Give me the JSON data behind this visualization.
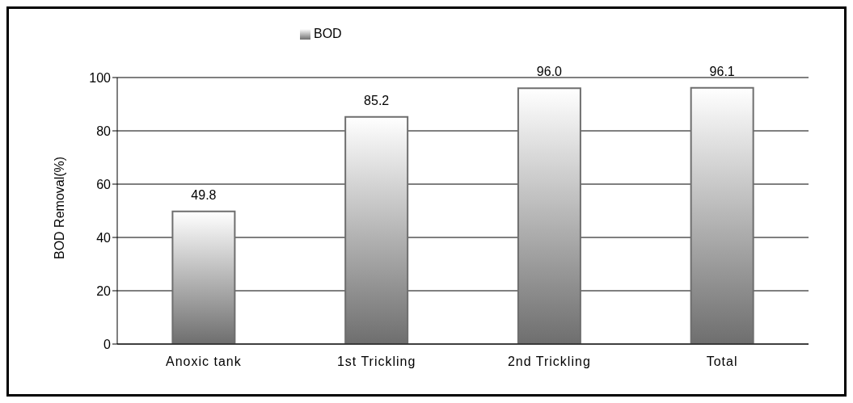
{
  "chart_data": {
    "type": "bar",
    "ylabel": "BOD Removal(%)",
    "categories": [
      "Anoxic tank",
      "1st Trickling",
      "2nd Trickling",
      "Total"
    ],
    "series": [
      {
        "name": "BOD",
        "color": "#6e6e6e",
        "values": [
          49.8,
          85.2,
          96.0,
          96.1
        ]
      }
    ],
    "value_labels": [
      "49.8",
      "85.2",
      "96.0",
      "96.1"
    ],
    "ylim": [
      0,
      100
    ],
    "yticks": [
      0,
      20,
      40,
      60,
      80,
      100
    ],
    "grid": "y",
    "legend": "top"
  }
}
